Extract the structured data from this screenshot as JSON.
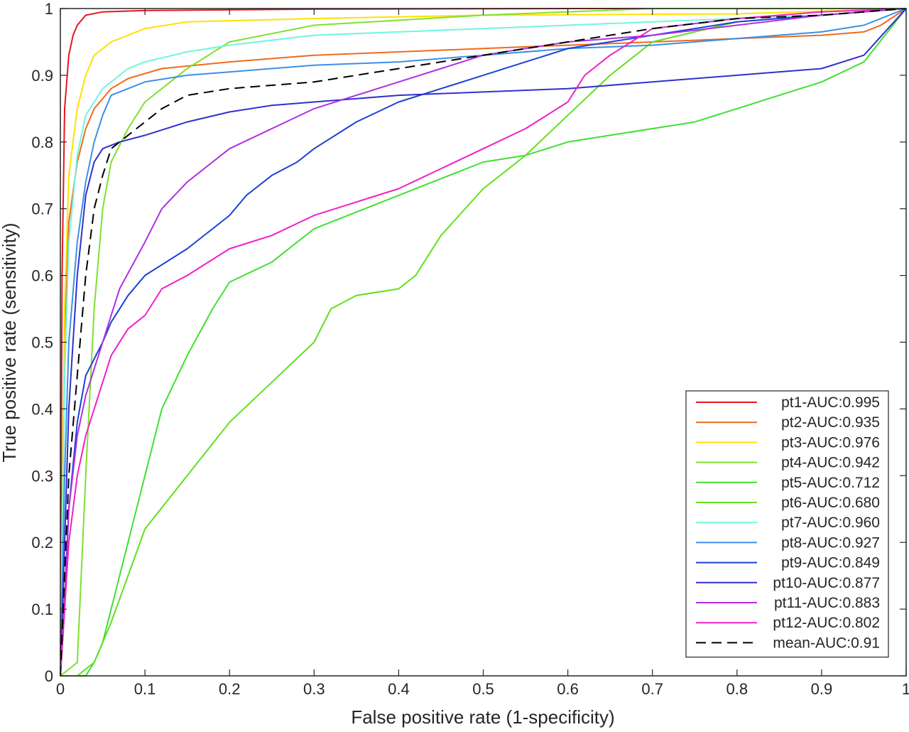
{
  "chart_data": {
    "type": "line",
    "title": "",
    "xlabel": "False positive rate (1-specificity)",
    "ylabel": "True positive rate (sensitivity)",
    "xlim": [
      0,
      1
    ],
    "ylim": [
      0,
      1
    ],
    "xticks": [
      "0",
      "0.1",
      "0.2",
      "0.3",
      "0.4",
      "0.5",
      "0.6",
      "0.7",
      "0.8",
      "0.9",
      "1"
    ],
    "yticks": [
      "0",
      "0.1",
      "0.2",
      "0.3",
      "0.4",
      "0.5",
      "0.6",
      "0.7",
      "0.8",
      "0.9",
      "1"
    ],
    "grid": false,
    "legend_position": "bottom-right",
    "series": [
      {
        "name": "pt1-AUC:0.995",
        "color": "#e8141c",
        "dash": false,
        "points": [
          [
            0,
            0
          ],
          [
            0.002,
            0.6
          ],
          [
            0.005,
            0.85
          ],
          [
            0.01,
            0.93
          ],
          [
            0.015,
            0.96
          ],
          [
            0.02,
            0.975
          ],
          [
            0.03,
            0.99
          ],
          [
            0.05,
            0.995
          ],
          [
            0.1,
            0.997
          ],
          [
            0.3,
            0.999
          ],
          [
            0.6,
            1
          ],
          [
            1,
            1
          ]
        ]
      },
      {
        "name": "pt2-AUC:0.935",
        "color": "#f06a1a",
        "dash": false,
        "points": [
          [
            0,
            0
          ],
          [
            0.005,
            0.5
          ],
          [
            0.01,
            0.68
          ],
          [
            0.02,
            0.77
          ],
          [
            0.03,
            0.82
          ],
          [
            0.04,
            0.85
          ],
          [
            0.06,
            0.88
          ],
          [
            0.08,
            0.895
          ],
          [
            0.12,
            0.91
          ],
          [
            0.2,
            0.92
          ],
          [
            0.3,
            0.93
          ],
          [
            0.4,
            0.935
          ],
          [
            0.5,
            0.94
          ],
          [
            0.6,
            0.945
          ],
          [
            0.7,
            0.95
          ],
          [
            0.8,
            0.955
          ],
          [
            0.9,
            0.96
          ],
          [
            0.95,
            0.965
          ],
          [
            0.97,
            0.975
          ],
          [
            1,
            1
          ]
        ]
      },
      {
        "name": "pt3-AUC:0.976",
        "color": "#ffe000",
        "dash": false,
        "points": [
          [
            0,
            0
          ],
          [
            0.005,
            0.55
          ],
          [
            0.01,
            0.75
          ],
          [
            0.02,
            0.85
          ],
          [
            0.03,
            0.9
          ],
          [
            0.04,
            0.93
          ],
          [
            0.06,
            0.95
          ],
          [
            0.1,
            0.97
          ],
          [
            0.15,
            0.98
          ],
          [
            0.3,
            0.985
          ],
          [
            0.5,
            0.99
          ],
          [
            0.8,
            0.992
          ],
          [
            1,
            1
          ]
        ]
      },
      {
        "name": "pt4-AUC:0.942",
        "color": "#7fe030",
        "dash": false,
        "points": [
          [
            0,
            0
          ],
          [
            0.02,
            0.02
          ],
          [
            0.03,
            0.3
          ],
          [
            0.04,
            0.55
          ],
          [
            0.05,
            0.7
          ],
          [
            0.06,
            0.77
          ],
          [
            0.08,
            0.82
          ],
          [
            0.1,
            0.86
          ],
          [
            0.12,
            0.88
          ],
          [
            0.15,
            0.91
          ],
          [
            0.2,
            0.95
          ],
          [
            0.3,
            0.975
          ],
          [
            0.5,
            0.99
          ],
          [
            0.7,
            1
          ],
          [
            1,
            1
          ]
        ]
      },
      {
        "name": "pt5-AUC:0.712",
        "color": "#40e030",
        "dash": false,
        "points": [
          [
            0,
            0
          ],
          [
            0.03,
            0
          ],
          [
            0.04,
            0.02
          ],
          [
            0.05,
            0.05
          ],
          [
            0.06,
            0.1
          ],
          [
            0.08,
            0.2
          ],
          [
            0.1,
            0.3
          ],
          [
            0.12,
            0.4
          ],
          [
            0.15,
            0.48
          ],
          [
            0.18,
            0.55
          ],
          [
            0.2,
            0.59
          ],
          [
            0.25,
            0.62
          ],
          [
            0.3,
            0.67
          ],
          [
            0.4,
            0.72
          ],
          [
            0.45,
            0.745
          ],
          [
            0.5,
            0.77
          ],
          [
            0.55,
            0.78
          ],
          [
            0.6,
            0.8
          ],
          [
            0.65,
            0.81
          ],
          [
            0.7,
            0.82
          ],
          [
            0.75,
            0.83
          ],
          [
            0.8,
            0.85
          ],
          [
            0.85,
            0.87
          ],
          [
            0.9,
            0.89
          ],
          [
            0.95,
            0.92
          ],
          [
            1,
            1
          ]
        ]
      },
      {
        "name": "pt6-AUC:0.680",
        "color": "#60e020",
        "dash": false,
        "points": [
          [
            0,
            0
          ],
          [
            0.02,
            0
          ],
          [
            0.04,
            0.02
          ],
          [
            0.06,
            0.08
          ],
          [
            0.08,
            0.15
          ],
          [
            0.1,
            0.22
          ],
          [
            0.15,
            0.3
          ],
          [
            0.2,
            0.38
          ],
          [
            0.25,
            0.44
          ],
          [
            0.3,
            0.5
          ],
          [
            0.32,
            0.55
          ],
          [
            0.35,
            0.57
          ],
          [
            0.4,
            0.58
          ],
          [
            0.42,
            0.6
          ],
          [
            0.45,
            0.66
          ],
          [
            0.5,
            0.73
          ],
          [
            0.55,
            0.78
          ],
          [
            0.6,
            0.84
          ],
          [
            0.65,
            0.9
          ],
          [
            0.7,
            0.95
          ],
          [
            0.8,
            0.98
          ],
          [
            0.9,
            0.99
          ],
          [
            1,
            1
          ]
        ]
      },
      {
        "name": "pt7-AUC:0.960",
        "color": "#70f5e0",
        "dash": false,
        "points": [
          [
            0,
            0
          ],
          [
            0.005,
            0.45
          ],
          [
            0.01,
            0.65
          ],
          [
            0.02,
            0.78
          ],
          [
            0.03,
            0.84
          ],
          [
            0.05,
            0.88
          ],
          [
            0.08,
            0.91
          ],
          [
            0.1,
            0.92
          ],
          [
            0.15,
            0.935
          ],
          [
            0.2,
            0.945
          ],
          [
            0.3,
            0.96
          ],
          [
            0.4,
            0.965
          ],
          [
            0.5,
            0.97
          ],
          [
            0.7,
            0.98
          ],
          [
            0.9,
            0.99
          ],
          [
            1,
            1
          ]
        ]
      },
      {
        "name": "pt8-AUC:0.927",
        "color": "#3a90e8",
        "dash": false,
        "points": [
          [
            0,
            0
          ],
          [
            0.005,
            0.3
          ],
          [
            0.01,
            0.5
          ],
          [
            0.02,
            0.65
          ],
          [
            0.03,
            0.74
          ],
          [
            0.04,
            0.8
          ],
          [
            0.05,
            0.84
          ],
          [
            0.06,
            0.87
          ],
          [
            0.08,
            0.88
          ],
          [
            0.1,
            0.89
          ],
          [
            0.15,
            0.9
          ],
          [
            0.2,
            0.905
          ],
          [
            0.3,
            0.915
          ],
          [
            0.4,
            0.92
          ],
          [
            0.5,
            0.93
          ],
          [
            0.6,
            0.94
          ],
          [
            0.7,
            0.945
          ],
          [
            0.8,
            0.955
          ],
          [
            0.9,
            0.965
          ],
          [
            0.95,
            0.975
          ],
          [
            1,
            1
          ]
        ]
      },
      {
        "name": "pt9-AUC:0.849",
        "color": "#1a40d8",
        "dash": false,
        "points": [
          [
            0,
            0
          ],
          [
            0.005,
            0.1
          ],
          [
            0.01,
            0.25
          ],
          [
            0.02,
            0.38
          ],
          [
            0.03,
            0.45
          ],
          [
            0.05,
            0.5
          ],
          [
            0.06,
            0.53
          ],
          [
            0.08,
            0.57
          ],
          [
            0.1,
            0.6
          ],
          [
            0.15,
            0.64
          ],
          [
            0.18,
            0.67
          ],
          [
            0.2,
            0.69
          ],
          [
            0.22,
            0.72
          ],
          [
            0.25,
            0.75
          ],
          [
            0.28,
            0.77
          ],
          [
            0.3,
            0.79
          ],
          [
            0.35,
            0.83
          ],
          [
            0.4,
            0.86
          ],
          [
            0.45,
            0.88
          ],
          [
            0.5,
            0.9
          ],
          [
            0.55,
            0.92
          ],
          [
            0.6,
            0.94
          ],
          [
            0.7,
            0.96
          ],
          [
            0.8,
            0.98
          ],
          [
            0.9,
            0.99
          ],
          [
            1,
            1
          ]
        ]
      },
      {
        "name": "pt10-AUC:0.877",
        "color": "#3030d0",
        "dash": false,
        "points": [
          [
            0,
            0
          ],
          [
            0.005,
            0.2
          ],
          [
            0.01,
            0.4
          ],
          [
            0.02,
            0.6
          ],
          [
            0.03,
            0.72
          ],
          [
            0.04,
            0.77
          ],
          [
            0.05,
            0.79
          ],
          [
            0.07,
            0.8
          ],
          [
            0.1,
            0.81
          ],
          [
            0.15,
            0.83
          ],
          [
            0.2,
            0.845
          ],
          [
            0.25,
            0.855
          ],
          [
            0.3,
            0.86
          ],
          [
            0.4,
            0.87
          ],
          [
            0.5,
            0.875
          ],
          [
            0.6,
            0.88
          ],
          [
            0.7,
            0.89
          ],
          [
            0.8,
            0.9
          ],
          [
            0.9,
            0.91
          ],
          [
            0.95,
            0.93
          ],
          [
            1,
            1
          ]
        ]
      },
      {
        "name": "pt11-AUC:0.883",
        "color": "#b030e0",
        "dash": false,
        "points": [
          [
            0,
            0
          ],
          [
            0.005,
            0.12
          ],
          [
            0.01,
            0.25
          ],
          [
            0.02,
            0.36
          ],
          [
            0.03,
            0.42
          ],
          [
            0.05,
            0.5
          ],
          [
            0.07,
            0.58
          ],
          [
            0.1,
            0.65
          ],
          [
            0.12,
            0.7
          ],
          [
            0.15,
            0.74
          ],
          [
            0.2,
            0.79
          ],
          [
            0.25,
            0.82
          ],
          [
            0.3,
            0.85
          ],
          [
            0.35,
            0.87
          ],
          [
            0.4,
            0.89
          ],
          [
            0.45,
            0.91
          ],
          [
            0.5,
            0.93
          ],
          [
            0.55,
            0.94
          ],
          [
            0.6,
            0.95
          ],
          [
            0.7,
            0.96
          ],
          [
            0.8,
            0.975
          ],
          [
            0.9,
            0.99
          ],
          [
            1,
            1
          ]
        ]
      },
      {
        "name": "pt12-AUC:0.802",
        "color": "#f020c8",
        "dash": false,
        "points": [
          [
            0,
            0
          ],
          [
            0.005,
            0.1
          ],
          [
            0.01,
            0.2
          ],
          [
            0.02,
            0.3
          ],
          [
            0.03,
            0.36
          ],
          [
            0.05,
            0.44
          ],
          [
            0.06,
            0.48
          ],
          [
            0.08,
            0.52
          ],
          [
            0.1,
            0.54
          ],
          [
            0.12,
            0.58
          ],
          [
            0.15,
            0.6
          ],
          [
            0.2,
            0.64
          ],
          [
            0.25,
            0.66
          ],
          [
            0.3,
            0.69
          ],
          [
            0.35,
            0.71
          ],
          [
            0.4,
            0.73
          ],
          [
            0.45,
            0.76
          ],
          [
            0.5,
            0.79
          ],
          [
            0.55,
            0.82
          ],
          [
            0.6,
            0.86
          ],
          [
            0.62,
            0.9
          ],
          [
            0.65,
            0.93
          ],
          [
            0.7,
            0.97
          ],
          [
            0.8,
            0.985
          ],
          [
            0.9,
            0.995
          ],
          [
            1,
            1
          ]
        ]
      },
      {
        "name": "mean-AUC:0.91",
        "color": "#000000",
        "dash": true,
        "points": [
          [
            0,
            0
          ],
          [
            0.005,
            0.15
          ],
          [
            0.01,
            0.3
          ],
          [
            0.02,
            0.45
          ],
          [
            0.03,
            0.6
          ],
          [
            0.04,
            0.7
          ],
          [
            0.05,
            0.75
          ],
          [
            0.06,
            0.79
          ],
          [
            0.08,
            0.81
          ],
          [
            0.1,
            0.83
          ],
          [
            0.12,
            0.85
          ],
          [
            0.15,
            0.87
          ],
          [
            0.2,
            0.88
          ],
          [
            0.25,
            0.885
          ],
          [
            0.3,
            0.89
          ],
          [
            0.35,
            0.9
          ],
          [
            0.4,
            0.91
          ],
          [
            0.5,
            0.93
          ],
          [
            0.6,
            0.95
          ],
          [
            0.7,
            0.97
          ],
          [
            0.8,
            0.985
          ],
          [
            0.9,
            0.99
          ],
          [
            0.95,
            0.995
          ],
          [
            1,
            1
          ]
        ]
      }
    ]
  }
}
